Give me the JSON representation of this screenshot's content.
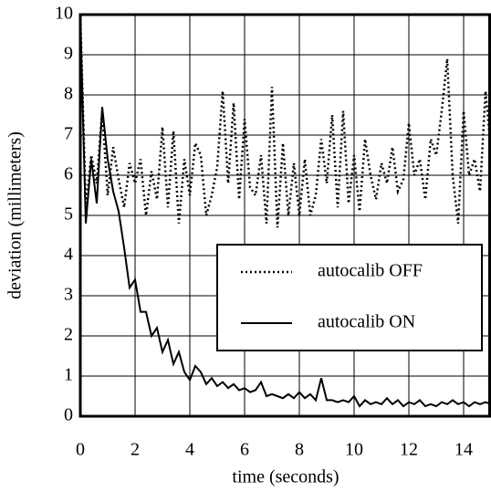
{
  "chart_data": {
    "type": "line",
    "xlabel": "time (seconds)",
    "ylabel": "deviation (millimeters)",
    "x": [
      0,
      0.2,
      0.4,
      0.6,
      0.8,
      1,
      1.2,
      1.4,
      1.6,
      1.8,
      2,
      2.2,
      2.4,
      2.6,
      2.8,
      3,
      3.2,
      3.4,
      3.6,
      3.8,
      4,
      4.2,
      4.4,
      4.6,
      4.8,
      5,
      5.2,
      5.4,
      5.6,
      5.8,
      6,
      6.2,
      6.4,
      6.6,
      6.8,
      7,
      7.2,
      7.4,
      7.6,
      7.8,
      8,
      8.2,
      8.4,
      8.6,
      8.8,
      9,
      9.2,
      9.4,
      9.6,
      9.8,
      10,
      10.2,
      10.4,
      10.6,
      10.8,
      11,
      11.2,
      11.4,
      11.6,
      11.8,
      12,
      12.2,
      12.4,
      12.6,
      12.8,
      13,
      13.2,
      13.4,
      13.6,
      13.8,
      14,
      14.2,
      14.4,
      14.6,
      14.8,
      15
    ],
    "series": [
      {
        "name": "autocalib OFF",
        "color": "#000000",
        "dash": "dotted",
        "values": [
          10,
          5.2,
          6.5,
          5.8,
          7.6,
          5.5,
          6.7,
          5.9,
          5.2,
          6.3,
          5.8,
          6.4,
          5.0,
          6.1,
          5.4,
          7.2,
          5.2,
          7.1,
          4.8,
          6.4,
          5.5,
          6.8,
          6.5,
          5.0,
          5.5,
          6.2,
          8.1,
          5.8,
          7.8,
          5.4,
          7.4,
          5.7,
          5.5,
          6.5,
          4.8,
          8.2,
          4.7,
          6.8,
          5.0,
          6.3,
          5.0,
          6.4,
          5.0,
          5.5,
          6.9,
          5.8,
          7.5,
          5.2,
          7.6,
          5.3,
          6.5,
          5.1,
          6.9,
          6.0,
          5.4,
          6.3,
          5.8,
          6.7,
          5.6,
          5.9,
          7.3,
          6.0,
          6.4,
          5.4,
          6.9,
          6.5,
          7.6,
          8.9,
          6.0,
          4.8,
          7.6,
          6.0,
          6.4,
          5.6,
          8.1,
          6.6
        ]
      },
      {
        "name": "autocalib ON",
        "color": "#000000",
        "dash": "solid",
        "values": [
          10,
          4.8,
          6.4,
          5.3,
          7.7,
          6.4,
          5.6,
          5.1,
          4.2,
          3.2,
          3.4,
          2.6,
          2.6,
          2.0,
          2.2,
          1.6,
          1.9,
          1.3,
          1.6,
          1.1,
          0.9,
          1.25,
          1.1,
          0.8,
          0.95,
          0.75,
          0.85,
          0.7,
          0.8,
          0.65,
          0.7,
          0.6,
          0.65,
          0.85,
          0.5,
          0.55,
          0.5,
          0.45,
          0.55,
          0.45,
          0.6,
          0.45,
          0.55,
          0.4,
          0.95,
          0.4,
          0.4,
          0.35,
          0.4,
          0.35,
          0.5,
          0.25,
          0.4,
          0.3,
          0.35,
          0.3,
          0.45,
          0.3,
          0.4,
          0.25,
          0.35,
          0.3,
          0.4,
          0.25,
          0.3,
          0.25,
          0.35,
          0.3,
          0.4,
          0.3,
          0.35,
          0.25,
          0.35,
          0.3,
          0.35,
          0.3
        ]
      }
    ],
    "xlim": [
      0,
      15
    ],
    "xticks": [
      0,
      2,
      4,
      6,
      8,
      10,
      12,
      14
    ],
    "ylim": [
      0,
      10
    ],
    "yticks": [
      0,
      1,
      2,
      3,
      4,
      5,
      6,
      7,
      8,
      9,
      10
    ],
    "grid": true,
    "legend": "lower right"
  }
}
